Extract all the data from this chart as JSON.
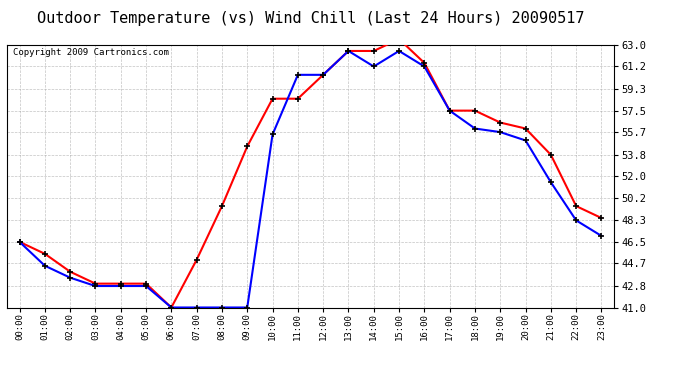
{
  "title": "Outdoor Temperature (vs) Wind Chill (Last 24 Hours) 20090517",
  "copyright": "Copyright 2009 Cartronics.com",
  "hours": [
    "00:00",
    "01:00",
    "02:00",
    "03:00",
    "04:00",
    "05:00",
    "06:00",
    "07:00",
    "08:00",
    "09:00",
    "10:00",
    "11:00",
    "12:00",
    "13:00",
    "14:00",
    "15:00",
    "16:00",
    "17:00",
    "18:00",
    "19:00",
    "20:00",
    "21:00",
    "22:00",
    "23:00"
  ],
  "temp": [
    46.5,
    45.5,
    44.0,
    43.0,
    43.0,
    43.0,
    41.0,
    45.0,
    49.5,
    54.5,
    58.5,
    58.5,
    60.5,
    62.5,
    62.5,
    63.5,
    61.5,
    57.5,
    57.5,
    56.5,
    56.0,
    53.8,
    49.5,
    48.5
  ],
  "wind_chill": [
    46.5,
    44.5,
    43.5,
    42.8,
    42.8,
    42.8,
    41.0,
    41.0,
    41.0,
    41.0,
    55.5,
    60.5,
    60.5,
    62.5,
    61.2,
    62.5,
    61.2,
    57.5,
    56.0,
    55.7,
    55.0,
    51.5,
    48.3,
    47.0
  ],
  "temp_color": "#ff0000",
  "wind_chill_color": "#0000ff",
  "marker_color": "#000000",
  "yticks": [
    41.0,
    42.8,
    44.7,
    46.5,
    48.3,
    50.2,
    52.0,
    53.8,
    55.7,
    57.5,
    59.3,
    61.2,
    63.0
  ],
  "ylim": [
    41.0,
    63.0
  ],
  "background_color": "#ffffff",
  "plot_bg_color": "#ffffff",
  "grid_color": "#aaaaaa",
  "title_fontsize": 11,
  "copyright_fontsize": 6.5
}
